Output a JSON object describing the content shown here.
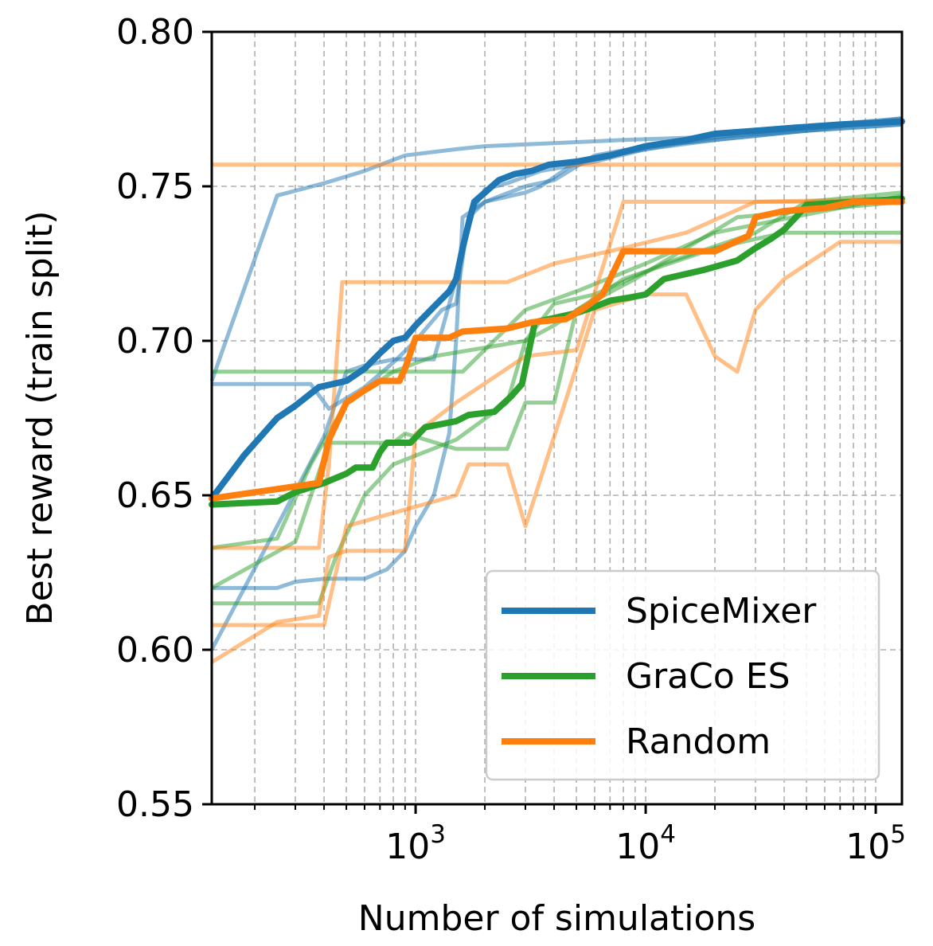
{
  "chart_data": {
    "type": "line",
    "title": "",
    "xlabel": "Number of simulations",
    "ylabel": "Best reward (train split)",
    "xscale": "log",
    "xlim": [
      130,
      130000
    ],
    "ylim": [
      0.55,
      0.8
    ],
    "yticks": [
      {
        "value": 0.55,
        "label": "0.55"
      },
      {
        "value": 0.6,
        "label": "0.60"
      },
      {
        "value": 0.65,
        "label": "0.65"
      },
      {
        "value": 0.7,
        "label": "0.70"
      },
      {
        "value": 0.75,
        "label": "0.75"
      },
      {
        "value": 0.8,
        "label": "0.80"
      }
    ],
    "xticks": [
      {
        "value": 1000,
        "base": "10",
        "exp": "3"
      },
      {
        "value": 10000,
        "base": "10",
        "exp": "4"
      },
      {
        "value": 100000,
        "base": "10",
        "exp": "5"
      }
    ],
    "grid": true,
    "legend": {
      "position": "lower-right",
      "entries": [
        {
          "label": "SpiceMixer",
          "color": "#1f77b4"
        },
        {
          "label": "GraCo ES",
          "color": "#2ca02c"
        },
        {
          "label": "Random",
          "color": "#ff7f0e"
        }
      ]
    },
    "series": [
      {
        "name": "SpiceMixer",
        "color": "#1f77b4",
        "mean": [
          [
            130,
            0.649
          ],
          [
            180,
            0.663
          ],
          [
            250,
            0.675
          ],
          [
            300,
            0.679
          ],
          [
            380,
            0.685
          ],
          [
            500,
            0.687
          ],
          [
            600,
            0.691
          ],
          [
            700,
            0.696
          ],
          [
            800,
            0.7
          ],
          [
            900,
            0.701
          ],
          [
            1000,
            0.705
          ],
          [
            1200,
            0.711
          ],
          [
            1400,
            0.716
          ],
          [
            1500,
            0.72
          ],
          [
            1600,
            0.73
          ],
          [
            1700,
            0.738
          ],
          [
            1800,
            0.745
          ],
          [
            2000,
            0.748
          ],
          [
            2300,
            0.752
          ],
          [
            2700,
            0.754
          ],
          [
            3200,
            0.755
          ],
          [
            3800,
            0.757
          ],
          [
            5000,
            0.758
          ],
          [
            7000,
            0.76
          ],
          [
            10000,
            0.763
          ],
          [
            15000,
            0.765
          ],
          [
            20000,
            0.767
          ],
          [
            30000,
            0.768
          ],
          [
            45000,
            0.769
          ],
          [
            70000,
            0.77
          ],
          [
            130000,
            0.771
          ]
        ],
        "runs": [
          [
            [
              130,
              0.687
            ],
            [
              250,
              0.747
            ],
            [
              400,
              0.751
            ],
            [
              600,
              0.755
            ],
            [
              900,
              0.76
            ],
            [
              1500,
              0.762
            ],
            [
              2000,
              0.763
            ],
            [
              4000,
              0.764
            ],
            [
              8000,
              0.765
            ],
            [
              20000,
              0.766
            ],
            [
              50000,
              0.768
            ],
            [
              130000,
              0.77
            ]
          ],
          [
            [
              130,
              0.686
            ],
            [
              350,
              0.686
            ],
            [
              420,
              0.678
            ],
            [
              600,
              0.685
            ],
            [
              800,
              0.693
            ],
            [
              1000,
              0.7
            ],
            [
              1300,
              0.71
            ],
            [
              1500,
              0.712
            ],
            [
              1700,
              0.74
            ],
            [
              2000,
              0.749
            ],
            [
              2500,
              0.751
            ],
            [
              3500,
              0.755
            ],
            [
              6000,
              0.758
            ],
            [
              10000,
              0.762
            ],
            [
              20000,
              0.765
            ],
            [
              50000,
              0.768
            ],
            [
              130000,
              0.772
            ]
          ],
          [
            [
              130,
              0.62
            ],
            [
              250,
              0.62
            ],
            [
              300,
              0.622
            ],
            [
              400,
              0.623
            ],
            [
              600,
              0.623
            ],
            [
              750,
              0.626
            ],
            [
              900,
              0.632
            ],
            [
              1000,
              0.64
            ],
            [
              1200,
              0.65
            ],
            [
              1400,
              0.67
            ],
            [
              1500,
              0.7
            ],
            [
              1600,
              0.74
            ],
            [
              2000,
              0.745
            ],
            [
              3000,
              0.75
            ],
            [
              4000,
              0.752
            ],
            [
              6000,
              0.76
            ],
            [
              10000,
              0.763
            ],
            [
              20000,
              0.765
            ],
            [
              50000,
              0.768
            ],
            [
              130000,
              0.77
            ]
          ],
          [
            [
              130,
              0.6
            ],
            [
              250,
              0.64
            ],
            [
              400,
              0.669
            ],
            [
              500,
              0.69
            ],
            [
              600,
              0.692
            ],
            [
              800,
              0.694
            ],
            [
              1200,
              0.694
            ],
            [
              1500,
              0.72
            ],
            [
              1700,
              0.74
            ],
            [
              2000,
              0.745
            ],
            [
              3000,
              0.748
            ],
            [
              3500,
              0.75
            ],
            [
              5000,
              0.758
            ],
            [
              10000,
              0.762
            ],
            [
              30000,
              0.768
            ],
            [
              130000,
              0.772
            ]
          ]
        ]
      },
      {
        "name": "GraCo ES",
        "color": "#2ca02c",
        "mean": [
          [
            130,
            0.647
          ],
          [
            250,
            0.648
          ],
          [
            300,
            0.651
          ],
          [
            400,
            0.654
          ],
          [
            500,
            0.657
          ],
          [
            550,
            0.659
          ],
          [
            650,
            0.659
          ],
          [
            700,
            0.664
          ],
          [
            750,
            0.667
          ],
          [
            950,
            0.667
          ],
          [
            1100,
            0.672
          ],
          [
            1500,
            0.674
          ],
          [
            1700,
            0.676
          ],
          [
            2200,
            0.677
          ],
          [
            2600,
            0.682
          ],
          [
            2900,
            0.686
          ],
          [
            3300,
            0.706
          ],
          [
            5000,
            0.709
          ],
          [
            6000,
            0.711
          ],
          [
            7000,
            0.713
          ],
          [
            8500,
            0.714
          ],
          [
            10000,
            0.715
          ],
          [
            12000,
            0.72
          ],
          [
            18000,
            0.723
          ],
          [
            25000,
            0.726
          ],
          [
            30000,
            0.73
          ],
          [
            35000,
            0.733
          ],
          [
            40000,
            0.736
          ],
          [
            45000,
            0.74
          ],
          [
            50000,
            0.744
          ],
          [
            130000,
            0.746
          ]
        ],
        "runs": [
          [
            [
              130,
              0.69
            ],
            [
              1600,
              0.69
            ],
            [
              3000,
              0.71
            ],
            [
              5000,
              0.716
            ],
            [
              10000,
              0.725
            ],
            [
              20000,
              0.735
            ],
            [
              130000,
              0.747
            ]
          ],
          [
            [
              130,
              0.633
            ],
            [
              250,
              0.636
            ],
            [
              350,
              0.66
            ],
            [
              500,
              0.68
            ],
            [
              800,
              0.69
            ],
            [
              1200,
              0.695
            ],
            [
              3000,
              0.7
            ],
            [
              4000,
              0.705
            ],
            [
              8000,
              0.72
            ],
            [
              20000,
              0.73
            ],
            [
              40000,
              0.735
            ],
            [
              130000,
              0.735
            ]
          ],
          [
            [
              130,
              0.615
            ],
            [
              380,
              0.615
            ],
            [
              450,
              0.63
            ],
            [
              600,
              0.65
            ],
            [
              800,
              0.66
            ],
            [
              1500,
              0.668
            ],
            [
              2500,
              0.68
            ],
            [
              3000,
              0.7
            ],
            [
              4000,
              0.712
            ],
            [
              6000,
              0.715
            ],
            [
              12000,
              0.725
            ],
            [
              30000,
              0.735
            ],
            [
              50000,
              0.745
            ],
            [
              130000,
              0.748
            ]
          ],
          [
            [
              130,
              0.62
            ],
            [
              300,
              0.635
            ],
            [
              420,
              0.667
            ],
            [
              800,
              0.667
            ],
            [
              900,
              0.67
            ],
            [
              1500,
              0.665
            ],
            [
              2500,
              0.665
            ],
            [
              3000,
              0.68
            ],
            [
              4000,
              0.68
            ],
            [
              5000,
              0.71
            ],
            [
              9000,
              0.72
            ],
            [
              15000,
              0.73
            ],
            [
              25000,
              0.74
            ],
            [
              130000,
              0.745
            ]
          ]
        ]
      },
      {
        "name": "Random",
        "color": "#ff7f0e",
        "mean": [
          [
            130,
            0.649
          ],
          [
            250,
            0.652
          ],
          [
            380,
            0.654
          ],
          [
            420,
            0.668
          ],
          [
            500,
            0.68
          ],
          [
            600,
            0.684
          ],
          [
            700,
            0.687
          ],
          [
            850,
            0.687
          ],
          [
            900,
            0.691
          ],
          [
            1000,
            0.701
          ],
          [
            1400,
            0.701
          ],
          [
            1600,
            0.703
          ],
          [
            2500,
            0.704
          ],
          [
            3200,
            0.706
          ],
          [
            4500,
            0.707
          ],
          [
            5500,
            0.711
          ],
          [
            6500,
            0.715
          ],
          [
            8000,
            0.729
          ],
          [
            20000,
            0.729
          ],
          [
            28000,
            0.734
          ],
          [
            30000,
            0.74
          ],
          [
            40000,
            0.742
          ],
          [
            60000,
            0.743
          ],
          [
            80000,
            0.745
          ],
          [
            130000,
            0.745
          ]
        ],
        "runs": [
          [
            [
              130,
              0.757
            ],
            [
              130000,
              0.757
            ]
          ],
          [
            [
              130,
              0.633
            ],
            [
              380,
              0.633
            ],
            [
              420,
              0.66
            ],
            [
              480,
              0.719
            ],
            [
              1800,
              0.719
            ],
            [
              2500,
              0.719
            ],
            [
              4000,
              0.725
            ],
            [
              8000,
              0.73
            ],
            [
              15000,
              0.735
            ],
            [
              30000,
              0.745
            ],
            [
              130000,
              0.746
            ]
          ],
          [
            [
              130,
              0.596
            ],
            [
              250,
              0.609
            ],
            [
              380,
              0.611
            ],
            [
              420,
              0.63
            ],
            [
              500,
              0.632
            ],
            [
              900,
              0.632
            ],
            [
              1000,
              0.67
            ],
            [
              1500,
              0.68
            ],
            [
              3000,
              0.695
            ],
            [
              5000,
              0.697
            ],
            [
              8000,
              0.745
            ],
            [
              10000,
              0.745
            ],
            [
              130000,
              0.745
            ]
          ],
          [
            [
              130,
              0.608
            ],
            [
              400,
              0.608
            ],
            [
              500,
              0.64
            ],
            [
              1500,
              0.65
            ],
            [
              1700,
              0.66
            ],
            [
              2500,
              0.66
            ],
            [
              3000,
              0.64
            ],
            [
              6000,
              0.71
            ],
            [
              10000,
              0.715
            ],
            [
              15000,
              0.715
            ],
            [
              20000,
              0.695
            ],
            [
              25000,
              0.69
            ],
            [
              30000,
              0.71
            ],
            [
              40000,
              0.72
            ],
            [
              70000,
              0.732
            ],
            [
              130000,
              0.732
            ]
          ]
        ]
      }
    ]
  }
}
